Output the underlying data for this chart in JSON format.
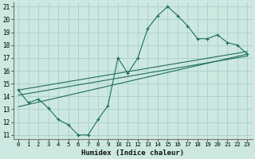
{
  "xlabel": "Humidex (Indice chaleur)",
  "bg_color": "#cce8e0",
  "grid_color": "#aacfc8",
  "line_color": "#1e6e5e",
  "xlim": [
    -0.5,
    23.5
  ],
  "ylim": [
    10.7,
    21.3
  ],
  "xticks": [
    0,
    1,
    2,
    3,
    4,
    5,
    6,
    7,
    8,
    9,
    10,
    11,
    12,
    13,
    14,
    15,
    16,
    17,
    18,
    19,
    20,
    21,
    22,
    23
  ],
  "yticks": [
    11,
    12,
    13,
    14,
    15,
    16,
    17,
    18,
    19,
    20,
    21
  ],
  "main_x": [
    0,
    1,
    2,
    3,
    4,
    5,
    6,
    7,
    8,
    9,
    10,
    11,
    12,
    13,
    14,
    15,
    16,
    17,
    18,
    19,
    20,
    21,
    22,
    23
  ],
  "main_y": [
    14.5,
    13.5,
    13.8,
    13.1,
    12.2,
    11.8,
    11.0,
    11.0,
    12.2,
    13.3,
    17.0,
    15.8,
    17.0,
    19.3,
    20.3,
    21.0,
    20.3,
    19.5,
    18.5,
    18.5,
    18.8,
    18.2,
    18.0,
    17.3
  ],
  "trend1_x0": 0,
  "trend1_y0": 14.5,
  "trend1_x1": 23,
  "trend1_y1": 17.5,
  "trend2_x0": 0,
  "trend2_y0": 14.1,
  "trend2_x1": 23,
  "trend2_y1": 17.15,
  "trend3_x0": 0,
  "trend3_y0": 13.2,
  "trend3_x1": 23,
  "trend3_y1": 17.3
}
